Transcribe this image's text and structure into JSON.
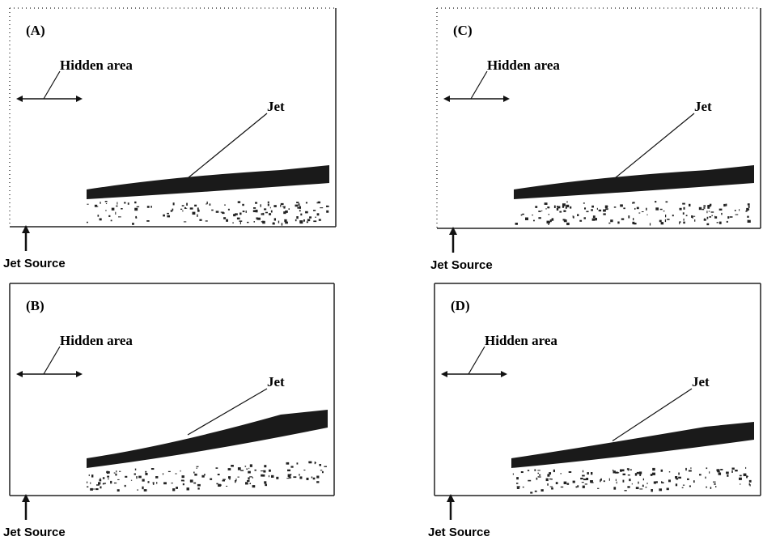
{
  "panels": [
    {
      "label": "(A)",
      "hidden_area": "Hidden area",
      "jet": "Jet",
      "source": "Jet Source"
    },
    {
      "label": "(B)",
      "hidden_area": "Hidden area",
      "jet": "Jet",
      "source": "Jet Source"
    },
    {
      "label": "(C)",
      "hidden_area": "Hidden area",
      "jet": "Jet",
      "source": "Jet Source"
    },
    {
      "label": "(D)",
      "hidden_area": "Hidden area",
      "jet": "Jet",
      "source": "Jet Source"
    }
  ]
}
